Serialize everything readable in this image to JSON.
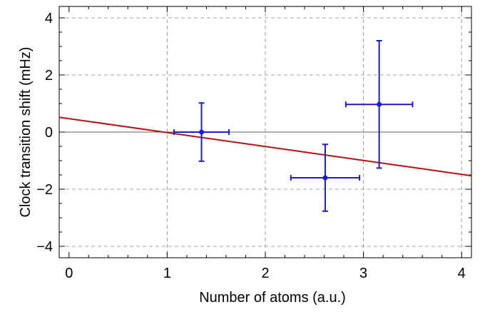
{
  "chart_data": {
    "type": "scatter",
    "xlabel": "Number of atoms (a.u.)",
    "ylabel": "Clock transition shift (mHz)",
    "xlim": [
      -0.1,
      4.1
    ],
    "ylim": [
      -4.4,
      4.4
    ],
    "x_ticks": [
      0,
      1,
      2,
      3,
      4
    ],
    "x_tick_labels": [
      "0",
      "1",
      "2",
      "3",
      "4"
    ],
    "y_ticks": [
      -4,
      -2,
      0,
      2,
      4
    ],
    "y_tick_labels": [
      "−4",
      "−2",
      "0",
      "2",
      "4"
    ],
    "grid": "dashed",
    "points": [
      {
        "x": 1.35,
        "y": 0.0,
        "x_err": 0.28,
        "y_err": 1.02
      },
      {
        "x": 2.61,
        "y": -1.6,
        "x_err": 0.35,
        "y_err": 1.17
      },
      {
        "x": 3.16,
        "y": 0.97,
        "x_err": 0.34,
        "y_err": 2.23
      }
    ],
    "fit_line": {
      "x": [
        -0.1,
        4.1
      ],
      "y": [
        0.52,
        -1.53
      ]
    },
    "colors": {
      "points": "#1c1cc8",
      "fit": "#b31313",
      "grid": "#a0a0a0",
      "zero_line": "#606060"
    }
  }
}
